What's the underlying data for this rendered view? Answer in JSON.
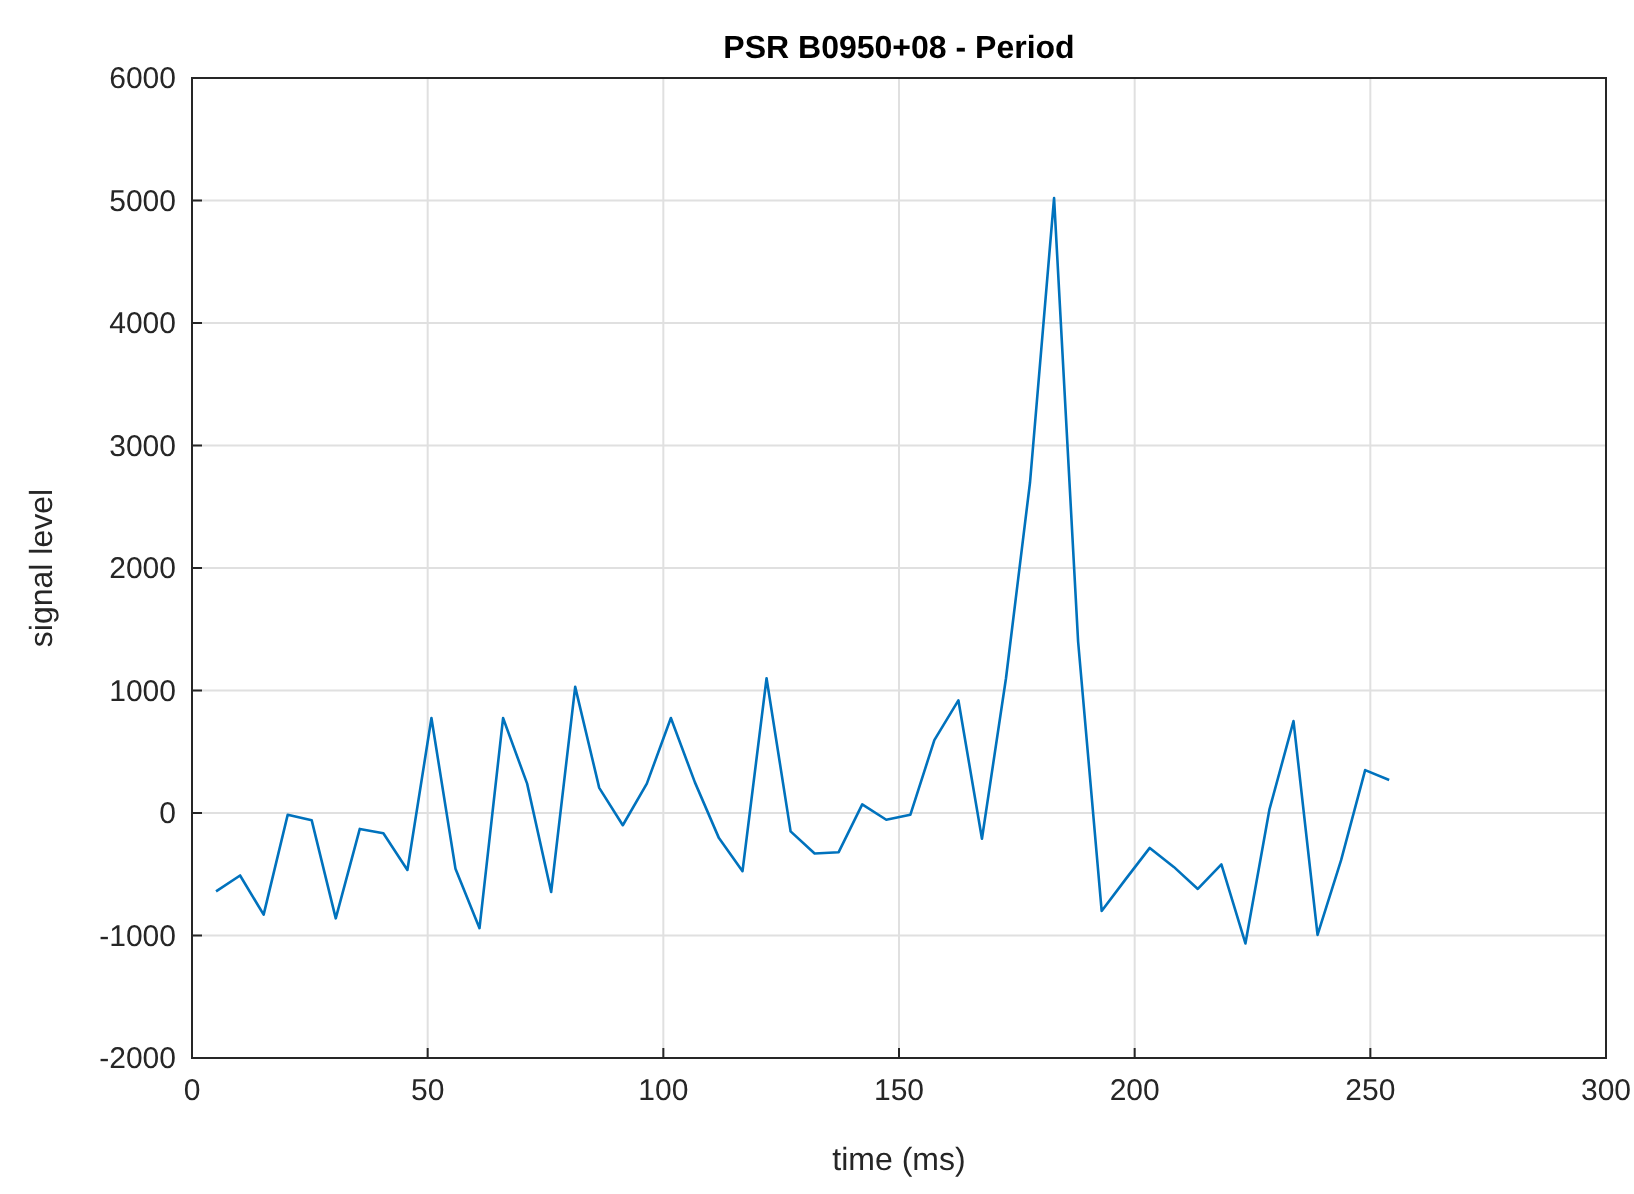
{
  "chart_data": {
    "type": "line",
    "title": "PSR B0950+08 - Period",
    "xlabel": "time (ms)",
    "ylabel": "signal level",
    "x": [
      5.1,
      10.2,
      15.2,
      20.3,
      25.4,
      30.5,
      35.6,
      40.6,
      45.7,
      50.8,
      55.9,
      61,
      66,
      71.1,
      76.2,
      81.3,
      86.4,
      91.4,
      96.5,
      101.6,
      106.7,
      111.8,
      116.8,
      121.9,
      127,
      132.1,
      137.2,
      142.2,
      147.3,
      152.4,
      157.5,
      162.6,
      167.6,
      172.7,
      177.8,
      182.9,
      188,
      193,
      198.1,
      203.2,
      208.3,
      213.4,
      218.4,
      223.5,
      228.6,
      233.7,
      238.8,
      243.8,
      248.9,
      254
    ],
    "series": [
      {
        "color": "#0072bd",
        "values": [
          -640,
          -510,
          -830,
          -15,
          -60,
          -860,
          -130,
          -165,
          -465,
          775,
          -455,
          -940,
          775,
          240,
          -645,
          1030,
          205,
          -100,
          240,
          775,
          250,
          -205,
          -475,
          1100,
          -150,
          -330,
          -320,
          70,
          -55,
          -15,
          595,
          920,
          -210,
          1100,
          2700,
          5020,
          1400,
          -800,
          -540,
          -285,
          -440,
          -620,
          -420,
          -1065,
          30,
          750,
          -995,
          -385,
          350,
          270
        ]
      }
    ],
    "xlim": [
      0,
      300
    ],
    "xticks": [
      0,
      50,
      100,
      150,
      200,
      250,
      300
    ],
    "ylim": [
      -2000,
      6000
    ],
    "yticks": [
      -2000,
      -1000,
      0,
      1000,
      2000,
      3000,
      4000,
      5000,
      6000
    ],
    "grid": true,
    "marker": "none",
    "line_style": "solid"
  }
}
